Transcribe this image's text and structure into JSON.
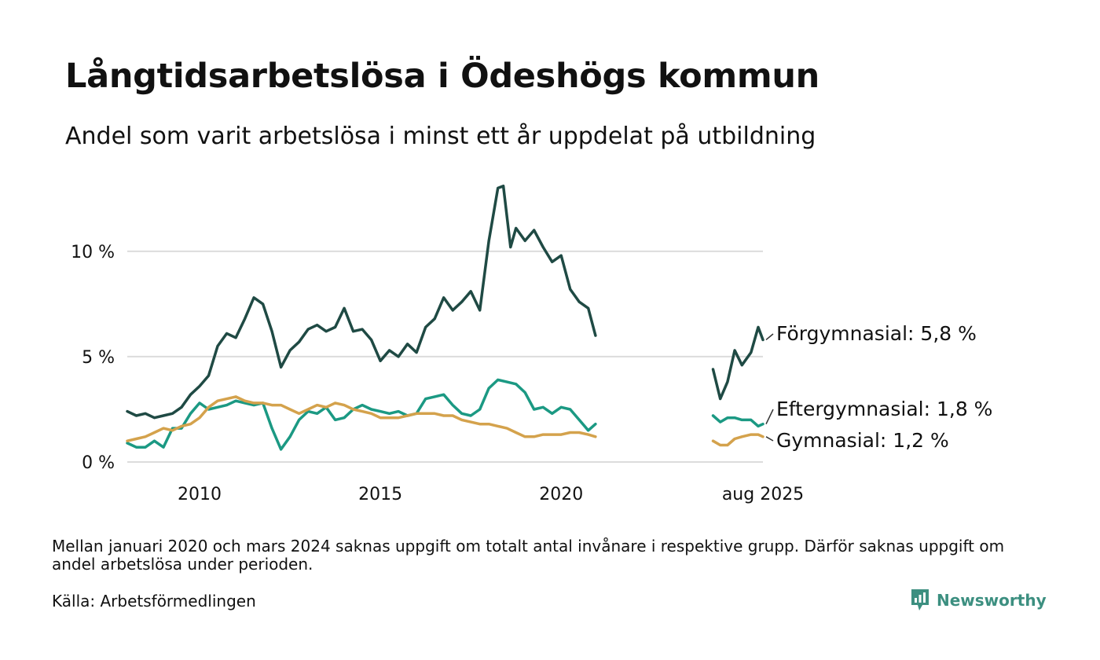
{
  "header": {
    "title": "Långtidsarbetslösa i Ödeshögs kommun",
    "subtitle": "Andel som varit arbetslösa i minst ett år uppdelat på utbildning"
  },
  "footer": {
    "note": "Mellan januari 2020 och mars 2024 saknas uppgift om totalt antal invånare i respektive grupp. Därför saknas uppgift om andel arbetslösa under perioden.",
    "source": "Källa: Arbetsförmedlingen",
    "brand": "Newsworthy",
    "brand_icon": "newsworthy-logo-icon"
  },
  "chart_data": {
    "type": "line",
    "x_unit": "year",
    "xlim": [
      2008.0,
      2025.58
    ],
    "ylim": [
      0,
      13.5
    ],
    "grid": true,
    "y_ticks": [
      {
        "value": 0,
        "label": "0 %"
      },
      {
        "value": 5,
        "label": "5 %"
      },
      {
        "value": 10,
        "label": "10 %"
      }
    ],
    "x_ticks": [
      {
        "value": 2010,
        "label": "2010"
      },
      {
        "value": 2015,
        "label": "2015"
      },
      {
        "value": 2020,
        "label": "2020"
      },
      {
        "value": 2025.58,
        "label": "aug 2025"
      }
    ],
    "gap": [
      "2020-12",
      "2024-03"
    ],
    "series": [
      {
        "name": "Förgymnasial",
        "end_label": "Förgymnasial: 5,8 %",
        "color": "#1f4a44",
        "segments": [
          [
            [
              2008.0,
              2.4
            ],
            [
              2008.25,
              2.2
            ],
            [
              2008.5,
              2.3
            ],
            [
              2008.75,
              2.1
            ],
            [
              2009.0,
              2.2
            ],
            [
              2009.25,
              2.3
            ],
            [
              2009.5,
              2.6
            ],
            [
              2009.75,
              3.2
            ],
            [
              2010.0,
              3.6
            ],
            [
              2010.25,
              4.1
            ],
            [
              2010.5,
              5.5
            ],
            [
              2010.75,
              6.1
            ],
            [
              2011.0,
              5.9
            ],
            [
              2011.25,
              6.8
            ],
            [
              2011.5,
              7.8
            ],
            [
              2011.75,
              7.5
            ],
            [
              2012.0,
              6.2
            ],
            [
              2012.25,
              4.5
            ],
            [
              2012.5,
              5.3
            ],
            [
              2012.75,
              5.7
            ],
            [
              2013.0,
              6.3
            ],
            [
              2013.25,
              6.5
            ],
            [
              2013.5,
              6.2
            ],
            [
              2013.75,
              6.4
            ],
            [
              2014.0,
              7.3
            ],
            [
              2014.25,
              6.2
            ],
            [
              2014.5,
              6.3
            ],
            [
              2014.75,
              5.8
            ],
            [
              2015.0,
              4.8
            ],
            [
              2015.25,
              5.3
            ],
            [
              2015.5,
              5.0
            ],
            [
              2015.75,
              5.6
            ],
            [
              2016.0,
              5.2
            ],
            [
              2016.25,
              6.4
            ],
            [
              2016.5,
              6.8
            ],
            [
              2016.75,
              7.8
            ],
            [
              2017.0,
              7.2
            ],
            [
              2017.25,
              7.6
            ],
            [
              2017.5,
              8.1
            ],
            [
              2017.75,
              7.2
            ],
            [
              2018.0,
              10.5
            ],
            [
              2018.25,
              13.0
            ],
            [
              2018.4,
              13.1
            ],
            [
              2018.6,
              10.2
            ],
            [
              2018.75,
              11.1
            ],
            [
              2019.0,
              10.5
            ],
            [
              2019.25,
              11.0
            ],
            [
              2019.5,
              10.2
            ],
            [
              2019.75,
              9.5
            ],
            [
              2020.0,
              9.8
            ],
            [
              2020.25,
              8.2
            ],
            [
              2020.5,
              7.6
            ],
            [
              2020.75,
              7.3
            ],
            [
              2020.95,
              6.0
            ]
          ],
          [
            [
              2024.2,
              4.4
            ],
            [
              2024.4,
              3.0
            ],
            [
              2024.6,
              3.8
            ],
            [
              2024.8,
              5.3
            ],
            [
              2025.0,
              4.6
            ],
            [
              2025.25,
              5.2
            ],
            [
              2025.45,
              6.4
            ],
            [
              2025.58,
              5.8
            ]
          ]
        ]
      },
      {
        "name": "Eftergymnasial",
        "end_label": "Eftergymnasial: 1,8 %",
        "color": "#1b9983",
        "segments": [
          [
            [
              2008.0,
              0.9
            ],
            [
              2008.25,
              0.7
            ],
            [
              2008.5,
              0.7
            ],
            [
              2008.75,
              1.0
            ],
            [
              2009.0,
              0.7
            ],
            [
              2009.25,
              1.6
            ],
            [
              2009.5,
              1.6
            ],
            [
              2009.75,
              2.3
            ],
            [
              2010.0,
              2.8
            ],
            [
              2010.25,
              2.5
            ],
            [
              2010.5,
              2.6
            ],
            [
              2010.75,
              2.7
            ],
            [
              2011.0,
              2.9
            ],
            [
              2011.25,
              2.8
            ],
            [
              2011.5,
              2.7
            ],
            [
              2011.75,
              2.8
            ],
            [
              2012.0,
              1.6
            ],
            [
              2012.25,
              0.6
            ],
            [
              2012.5,
              1.2
            ],
            [
              2012.75,
              2.0
            ],
            [
              2013.0,
              2.4
            ],
            [
              2013.25,
              2.3
            ],
            [
              2013.5,
              2.6
            ],
            [
              2013.75,
              2.0
            ],
            [
              2014.0,
              2.1
            ],
            [
              2014.25,
              2.5
            ],
            [
              2014.5,
              2.7
            ],
            [
              2014.75,
              2.5
            ],
            [
              2015.0,
              2.4
            ],
            [
              2015.25,
              2.3
            ],
            [
              2015.5,
              2.4
            ],
            [
              2015.75,
              2.2
            ],
            [
              2016.0,
              2.3
            ],
            [
              2016.25,
              3.0
            ],
            [
              2016.5,
              3.1
            ],
            [
              2016.75,
              3.2
            ],
            [
              2017.0,
              2.7
            ],
            [
              2017.25,
              2.3
            ],
            [
              2017.5,
              2.2
            ],
            [
              2017.75,
              2.5
            ],
            [
              2018.0,
              3.5
            ],
            [
              2018.25,
              3.9
            ],
            [
              2018.5,
              3.8
            ],
            [
              2018.75,
              3.7
            ],
            [
              2019.0,
              3.3
            ],
            [
              2019.25,
              2.5
            ],
            [
              2019.5,
              2.6
            ],
            [
              2019.75,
              2.3
            ],
            [
              2020.0,
              2.6
            ],
            [
              2020.25,
              2.5
            ],
            [
              2020.5,
              2.0
            ],
            [
              2020.75,
              1.5
            ],
            [
              2020.95,
              1.8
            ]
          ],
          [
            [
              2024.2,
              2.2
            ],
            [
              2024.4,
              1.9
            ],
            [
              2024.6,
              2.1
            ],
            [
              2024.8,
              2.1
            ],
            [
              2025.0,
              2.0
            ],
            [
              2025.25,
              2.0
            ],
            [
              2025.45,
              1.7
            ],
            [
              2025.58,
              1.8
            ]
          ]
        ]
      },
      {
        "name": "Gymnasial",
        "end_label": "Gymnasial: 1,2 %",
        "color": "#d4a24c",
        "segments": [
          [
            [
              2008.0,
              1.0
            ],
            [
              2008.25,
              1.1
            ],
            [
              2008.5,
              1.2
            ],
            [
              2008.75,
              1.4
            ],
            [
              2009.0,
              1.6
            ],
            [
              2009.25,
              1.5
            ],
            [
              2009.5,
              1.7
            ],
            [
              2009.75,
              1.8
            ],
            [
              2010.0,
              2.1
            ],
            [
              2010.25,
              2.6
            ],
            [
              2010.5,
              2.9
            ],
            [
              2010.75,
              3.0
            ],
            [
              2011.0,
              3.1
            ],
            [
              2011.25,
              2.9
            ],
            [
              2011.5,
              2.8
            ],
            [
              2011.75,
              2.8
            ],
            [
              2012.0,
              2.7
            ],
            [
              2012.25,
              2.7
            ],
            [
              2012.5,
              2.5
            ],
            [
              2012.75,
              2.3
            ],
            [
              2013.0,
              2.5
            ],
            [
              2013.25,
              2.7
            ],
            [
              2013.5,
              2.6
            ],
            [
              2013.75,
              2.8
            ],
            [
              2014.0,
              2.7
            ],
            [
              2014.25,
              2.5
            ],
            [
              2014.5,
              2.4
            ],
            [
              2014.75,
              2.3
            ],
            [
              2015.0,
              2.1
            ],
            [
              2015.25,
              2.1
            ],
            [
              2015.5,
              2.1
            ],
            [
              2015.75,
              2.2
            ],
            [
              2016.0,
              2.3
            ],
            [
              2016.25,
              2.3
            ],
            [
              2016.5,
              2.3
            ],
            [
              2016.75,
              2.2
            ],
            [
              2017.0,
              2.2
            ],
            [
              2017.25,
              2.0
            ],
            [
              2017.5,
              1.9
            ],
            [
              2017.75,
              1.8
            ],
            [
              2018.0,
              1.8
            ],
            [
              2018.25,
              1.7
            ],
            [
              2018.5,
              1.6
            ],
            [
              2018.75,
              1.4
            ],
            [
              2019.0,
              1.2
            ],
            [
              2019.25,
              1.2
            ],
            [
              2019.5,
              1.3
            ],
            [
              2019.75,
              1.3
            ],
            [
              2020.0,
              1.3
            ],
            [
              2020.25,
              1.4
            ],
            [
              2020.5,
              1.4
            ],
            [
              2020.75,
              1.3
            ],
            [
              2020.95,
              1.2
            ]
          ],
          [
            [
              2024.2,
              1.0
            ],
            [
              2024.4,
              0.8
            ],
            [
              2024.6,
              0.8
            ],
            [
              2024.8,
              1.1
            ],
            [
              2025.0,
              1.2
            ],
            [
              2025.25,
              1.3
            ],
            [
              2025.45,
              1.3
            ],
            [
              2025.58,
              1.2
            ]
          ]
        ]
      }
    ]
  }
}
